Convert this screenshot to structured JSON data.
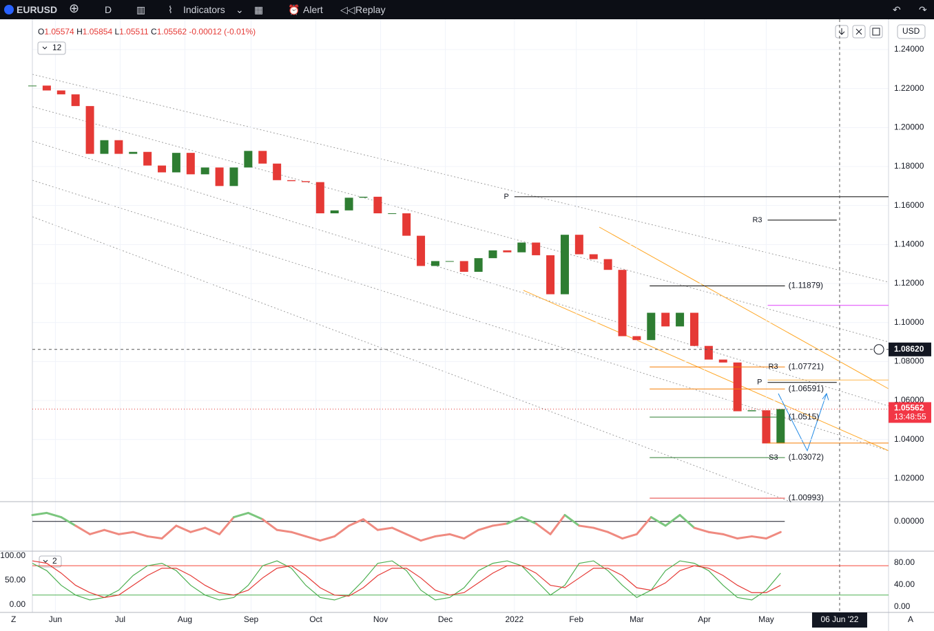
{
  "toolbar": {
    "symbol": "EURUSD",
    "interval": "D",
    "indicators": "Indicators",
    "alert": "Alert",
    "replay": "Replay"
  },
  "chart_data": [
    {
      "type": "candlestick",
      "legend": {
        "o_tag": "O",
        "o": 1.05574,
        "h_tag": "H",
        "h": 1.05854,
        "l_tag": "L",
        "l": 1.05511,
        "c_tag": "C",
        "c": 1.05562,
        "change": -0.00012,
        "change_pct": "(-0.01%)"
      },
      "indicator_count": "12",
      "currency": "USD",
      "up_color": "#2e7d32",
      "down_color": "#e53935",
      "values": [
        1.2215,
        1.219,
        1.217,
        1.211,
        1.1865,
        1.1935,
        1.1865,
        1.1875,
        1.1805,
        1.177,
        1.187,
        1.176,
        1.1795,
        1.17,
        1.1795,
        1.188,
        1.1815,
        1.173,
        1.1725,
        1.172,
        1.156,
        1.1575,
        1.164,
        1.1645,
        1.156,
        1.156,
        1.1445,
        1.129,
        1.1315,
        1.1315,
        1.126,
        1.133,
        1.137,
        1.136,
        1.141,
        1.1345,
        1.1145,
        1.145,
        1.135,
        1.1325,
        1.127,
        1.093,
        1.091,
        1.105,
        1.098,
        1.105,
        1.088,
        1.081,
        1.0795,
        1.0545,
        1.055,
        1.038,
        1.05562
      ],
      "xlim": [
        0,
        59.5
      ],
      "xticks": [
        {
          "value": 1.6,
          "label": "Jun"
        },
        {
          "value": 6.1,
          "label": "Jul"
        },
        {
          "value": 10.6,
          "label": "Aug"
        },
        {
          "value": 15.2,
          "label": "Sep"
        },
        {
          "value": 19.7,
          "label": "Oct"
        },
        {
          "value": 24.2,
          "label": "Nov"
        },
        {
          "value": 28.7,
          "label": "Dec"
        },
        {
          "value": 33.5,
          "label": "2022"
        },
        {
          "value": 37.8,
          "label": "Feb"
        },
        {
          "value": 42.0,
          "label": "Mar"
        },
        {
          "value": 46.7,
          "label": "Apr"
        },
        {
          "value": 51.0,
          "label": "May"
        }
      ],
      "ylim": [
        1.0085,
        1.2541
      ],
      "yticks": [
        {
          "value": 1.24,
          "label": "1.24000"
        },
        {
          "value": 1.22,
          "label": "1.22000"
        },
        {
          "value": 1.2,
          "label": "1.20000"
        },
        {
          "value": 1.18,
          "label": "1.18000"
        },
        {
          "value": 1.16,
          "label": "1.16000"
        },
        {
          "value": 1.14,
          "label": "1.14000"
        },
        {
          "value": 1.12,
          "label": "1.12000"
        },
        {
          "value": 1.1,
          "label": "1.10000"
        },
        {
          "value": 1.08,
          "label": "1.08000"
        },
        {
          "value": 1.06,
          "label": "1.06000"
        },
        {
          "value": 1.04,
          "label": "1.04000"
        },
        {
          "value": 1.02,
          "label": "1.02000"
        }
      ],
      "grid": true,
      "levels": [
        {
          "tag": "P",
          "value": 1.1645,
          "from": 33.5,
          "to": 59.5,
          "color": "#000000"
        },
        {
          "tag": "R3",
          "value": 1.1525,
          "from": 51.1,
          "to": 55.9,
          "color": "#000000"
        },
        {
          "label": "(1.11879)",
          "value": 1.11879,
          "from": 42.9,
          "to": 52.3,
          "color": "#000000"
        },
        {
          "value": 1.1088,
          "from": 51.1,
          "to": 59.5,
          "color": "#e040fb"
        },
        {
          "tag": "R3",
          "label": "(1.07721)",
          "value": 1.07721,
          "from": 42.9,
          "to": 52.3,
          "color": "#f57c00"
        },
        {
          "value": 1.0705,
          "from": 51.1,
          "to": 59.5,
          "color": "#ffb74d"
        },
        {
          "tag": "P",
          "value": 1.0693,
          "from": 51.1,
          "to": 55.9,
          "color": "#000000"
        },
        {
          "label": "(1.06591)",
          "value": 1.06591,
          "from": 42.9,
          "to": 52.3,
          "color": "#f57c00"
        },
        {
          "label": "(1.0515)",
          "value": 1.0515,
          "from": 42.9,
          "to": 52.3,
          "color": "#2e7d32"
        },
        {
          "value": 1.0382,
          "from": 51.1,
          "to": 59.5,
          "color": "#f57c00"
        },
        {
          "tag": "S3",
          "label": "(1.03072)",
          "value": 1.03072,
          "from": 42.9,
          "to": 52.3,
          "color": "#2e7d32"
        },
        {
          "label": "(1.00993)",
          "value": 1.00993,
          "from": 42.9,
          "to": 52.3,
          "color": "#e53935"
        }
      ],
      "crosshair": {
        "y": {
          "value": 1.0862,
          "label": "1.08620"
        },
        "x": {
          "value": 56.1,
          "label": "06 Jun '22"
        }
      },
      "last_price": 1.05562,
      "countdown": "13:48:55"
    },
    {
      "type": "line",
      "up_color": "#7bc67e",
      "down_color": "#ef8a80",
      "values": [
        0.003,
        0.004,
        0.002,
        -0.002,
        -0.006,
        -0.004,
        -0.006,
        -0.005,
        -0.007,
        -0.008,
        -0.002,
        -0.005,
        -0.003,
        -0.006,
        0.002,
        0.004,
        0.001,
        -0.004,
        -0.005,
        -0.007,
        -0.009,
        -0.007,
        -0.002,
        0.001,
        -0.004,
        -0.003,
        -0.006,
        -0.009,
        -0.007,
        -0.006,
        -0.008,
        -0.004,
        -0.002,
        -0.001,
        0.002,
        -0.001,
        -0.006,
        0.003,
        -0.002,
        -0.003,
        -0.005,
        -0.008,
        -0.006,
        0.002,
        -0.002,
        0.003,
        -0.003,
        -0.005,
        -0.006,
        -0.008,
        -0.007,
        -0.008,
        -0.005
      ],
      "ylim": [
        -0.013,
        0.008
      ],
      "yticks": [
        {
          "value": 0,
          "label": "0.00000"
        }
      ]
    },
    {
      "type": "line",
      "indicator_count": "2",
      "series": [
        {
          "color": "#4caf50",
          "values": [
            85,
            70,
            40,
            20,
            10,
            15,
            30,
            60,
            80,
            85,
            70,
            40,
            20,
            10,
            15,
            40,
            80,
            90,
            75,
            40,
            15,
            10,
            20,
            50,
            85,
            90,
            70,
            30,
            10,
            15,
            35,
            70,
            85,
            90,
            80,
            50,
            20,
            40,
            85,
            90,
            70,
            40,
            15,
            30,
            70,
            90,
            85,
            70,
            40,
            15,
            10,
            30,
            65
          ]
        },
        {
          "color": "#e53935",
          "values": [
            90,
            85,
            65,
            40,
            25,
            15,
            20,
            40,
            60,
            75,
            75,
            60,
            40,
            25,
            20,
            30,
            55,
            75,
            80,
            60,
            35,
            20,
            18,
            35,
            60,
            75,
            75,
            55,
            30,
            20,
            25,
            45,
            65,
            80,
            80,
            65,
            40,
            35,
            55,
            75,
            75,
            60,
            35,
            30,
            45,
            70,
            80,
            75,
            60,
            40,
            25,
            25,
            40
          ]
        }
      ],
      "ylim": [
        -15.5,
        105.6
      ],
      "yticks": [
        {
          "value": 100,
          "label": "100.00"
        },
        {
          "value": 50,
          "label": "50.00"
        },
        {
          "value": 0,
          "label": "0.00"
        }
      ],
      "y2lim": [
        -10,
        97.5
      ],
      "y2ticks": [
        {
          "value": 80,
          "label": "80.00"
        },
        {
          "value": 40,
          "label": "40.00"
        },
        {
          "value": 0,
          "label": "0.00"
        }
      ],
      "levels": [
        {
          "value": 80,
          "color": "#f44336"
        },
        {
          "value": 20,
          "color": "#4caf50"
        }
      ]
    }
  ]
}
